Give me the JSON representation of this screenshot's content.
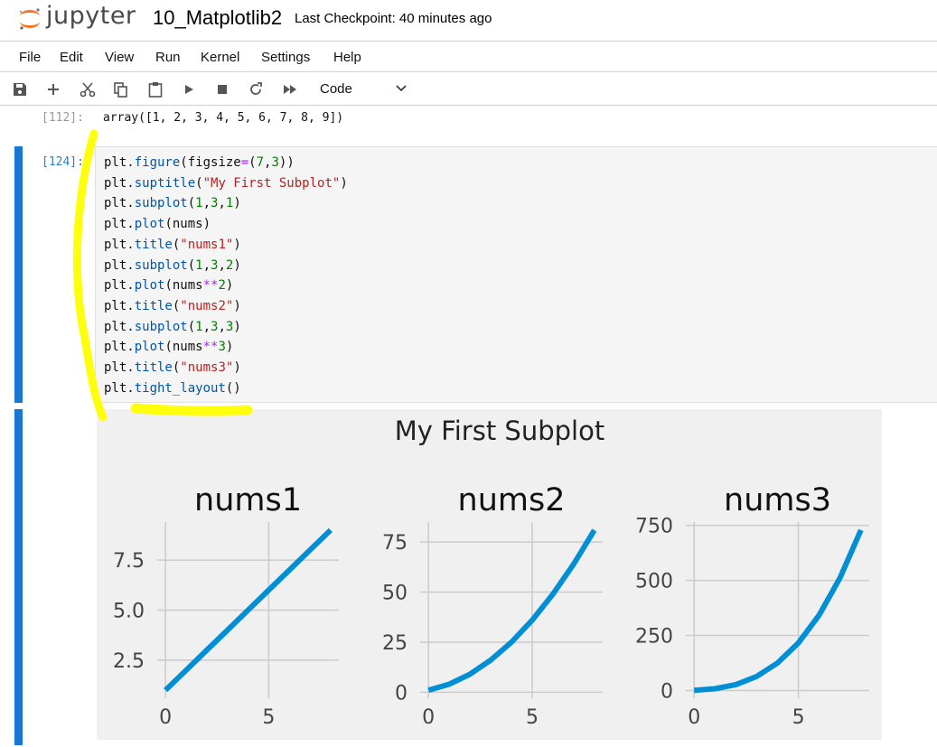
{
  "header": {
    "logo_text": "jupyter",
    "notebook_name": "10_Matplotlib2",
    "checkpoint": "Last Checkpoint: 40 minutes ago"
  },
  "menu": [
    "File",
    "Edit",
    "View",
    "Run",
    "Kernel",
    "Settings",
    "Help"
  ],
  "toolbar": {
    "icons": [
      "save-icon",
      "add-icon",
      "cut-icon",
      "copy-icon",
      "paste-icon",
      "run-icon",
      "stop-icon",
      "restart-icon",
      "fast-forward-icon"
    ],
    "cell_type": "Code"
  },
  "cells": {
    "prev_output": {
      "prompt": "[112]:",
      "text": "array([1, 2, 3, 4, 5, 6, 7, 8, 9])"
    },
    "code_cell": {
      "prompt": "[124]:",
      "lines": [
        "plt.figure(figsize=(7,3))",
        "plt.suptitle(\"My First Subplot\")",
        "plt.subplot(1,3,1)",
        "plt.plot(nums)",
        "plt.title(\"nums1\")",
        "plt.subplot(1,3,2)",
        "plt.plot(nums**2)",
        "plt.title(\"nums2\")",
        "plt.subplot(1,3,3)",
        "plt.plot(nums**3)",
        "plt.title(\"nums3\")",
        "plt.tight_layout()"
      ]
    }
  },
  "colors": {
    "accent": "#1976d2",
    "line": "#008fd5",
    "figure_bg": "#f0f0f0",
    "grid": "#cbcbcb",
    "highlight": "#ffff00"
  },
  "chart_data": {
    "suptitle": "My First Subplot",
    "charts": [
      {
        "type": "line",
        "title": "nums1",
        "x": [
          0,
          1,
          2,
          3,
          4,
          5,
          6,
          7,
          8
        ],
        "y": [
          1,
          2,
          3,
          4,
          5,
          6,
          7,
          8,
          9
        ],
        "xticks": [
          0,
          5
        ],
        "yticks": [
          2.5,
          5.0,
          7.5
        ],
        "ytick_labels": [
          "2.5",
          "5.0",
          "7.5"
        ],
        "xlim": [
          -0.4,
          8.4
        ],
        "ylim": [
          0.6,
          9.4
        ],
        "grid": true
      },
      {
        "type": "line",
        "title": "nums2",
        "x": [
          0,
          1,
          2,
          3,
          4,
          5,
          6,
          7,
          8
        ],
        "y": [
          1,
          4,
          9,
          16,
          25,
          36,
          49,
          64,
          81
        ],
        "xticks": [
          0,
          5
        ],
        "yticks": [
          0,
          25,
          50,
          75
        ],
        "ytick_labels": [
          "0",
          "25",
          "50",
          "75"
        ],
        "xlim": [
          -0.4,
          8.4
        ],
        "ylim": [
          -3,
          85
        ],
        "grid": true
      },
      {
        "type": "line",
        "title": "nums3",
        "x": [
          0,
          1,
          2,
          3,
          4,
          5,
          6,
          7,
          8
        ],
        "y": [
          1,
          8,
          27,
          64,
          125,
          216,
          343,
          512,
          729
        ],
        "xticks": [
          0,
          5
        ],
        "yticks": [
          0,
          250,
          500,
          750
        ],
        "ytick_labels": [
          "0",
          "250",
          "500",
          "750"
        ],
        "xlim": [
          -0.4,
          8.4
        ],
        "ylim": [
          -35,
          765
        ],
        "grid": true
      }
    ]
  }
}
